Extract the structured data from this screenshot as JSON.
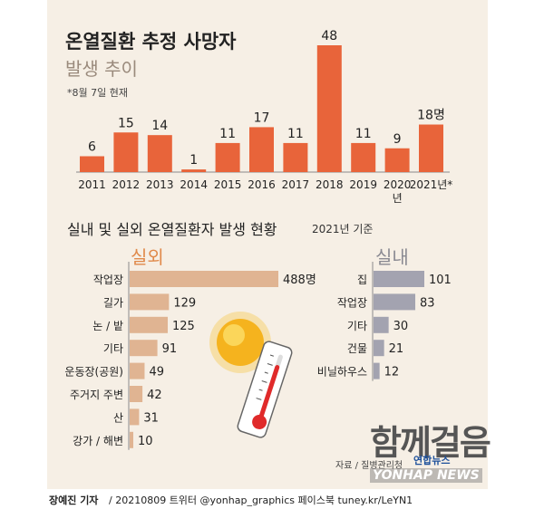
{
  "header": {
    "title": "온열질환 추정 사망자",
    "subtitle": "발생 추이",
    "note": "*8월 7일 현재"
  },
  "chart_data": [
    {
      "type": "bar",
      "title": "온열질환 추정 사망자 발생 추이",
      "categories": [
        "2011",
        "2012",
        "2013",
        "2014",
        "2015",
        "2016",
        "2017",
        "2018",
        "2019",
        "2020년",
        "2021년*"
      ],
      "values": [
        6,
        15,
        14,
        1,
        11,
        17,
        11,
        48,
        11,
        9,
        18
      ],
      "value_labels": [
        "6",
        "15",
        "14",
        "1",
        "11",
        "17",
        "11",
        "48",
        "11",
        "9",
        "18명"
      ],
      "ylim": [
        0,
        48
      ],
      "color": "#e8643a"
    },
    {
      "type": "bar",
      "orientation": "horizontal",
      "title": "실내 및 실외 온열질환자 발생 현황",
      "subtitle": "2021년 기준",
      "panels": [
        {
          "label": "실외",
          "color": "#e0b492",
          "categories": [
            "작업장",
            "길가",
            "논 / 밭",
            "기타",
            "운동장(공원)",
            "주거지 주변",
            "산",
            "강가 / 해변"
          ],
          "values": [
            488,
            129,
            125,
            91,
            49,
            42,
            31,
            10
          ],
          "value_labels": [
            "488명",
            "129",
            "125",
            "91",
            "49",
            "42",
            "31",
            "10"
          ]
        },
        {
          "label": "실내",
          "color": "#a3a3b0",
          "categories": [
            "집",
            "작업장",
            "기타",
            "건물",
            "비닐하우스"
          ],
          "values": [
            101,
            83,
            30,
            21,
            12
          ],
          "value_labels": [
            "101",
            "83",
            "30",
            "21",
            "12"
          ]
        }
      ]
    }
  ],
  "footer": {
    "source": "자료 / 질병관리청",
    "agency_logo": "연합뉴스",
    "agency_news": "YONHAP NEWS",
    "reporter": "장예진 기자",
    "credit": "/ 20210809 트위터 @yonhap_graphics  페이스북 tuney.kr/LeYN1",
    "watermark": "함께걸음"
  },
  "icons": [
    "sun-icon",
    "thermometer-icon"
  ]
}
